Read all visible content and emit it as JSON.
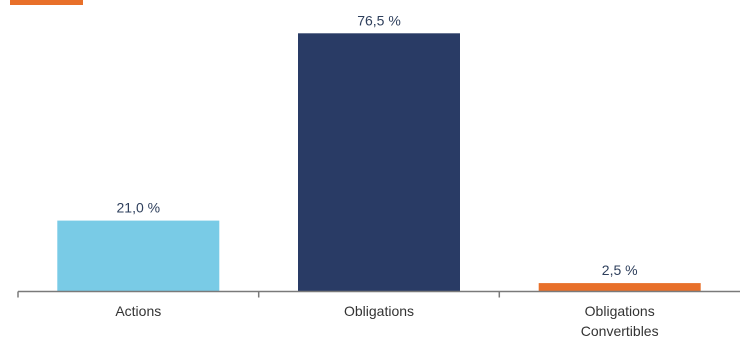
{
  "colors": {
    "accent": "#e8702a",
    "axis": "#7a7a7a"
  },
  "chart_data": {
    "type": "bar",
    "title": "",
    "xlabel": "",
    "ylabel": "",
    "ylim": [
      0,
      80
    ],
    "grid": false,
    "categories": [
      [
        "Actions"
      ],
      [
        "Obligations"
      ],
      [
        "Obligations",
        "Convertibles"
      ]
    ],
    "values": [
      21.0,
      76.5,
      2.5
    ],
    "value_labels": [
      "21,0 %",
      "76,5 %",
      "2,5 %"
    ],
    "bar_colors": [
      "#79cbe6",
      "#293b65",
      "#e8702a"
    ]
  }
}
